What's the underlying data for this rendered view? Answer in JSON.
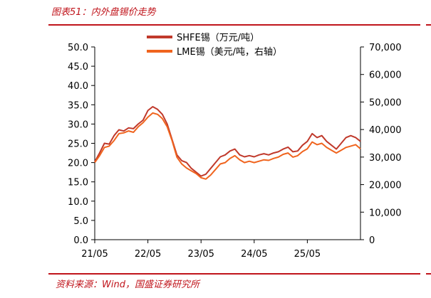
{
  "figure": {
    "title": "图表51：内外盘锡价走势",
    "source": "资料来源：Wind，国盛证券研究所"
  },
  "colors": {
    "accent": "#c0141b",
    "shfe": "#c0392b",
    "lme": "#f0641e"
  },
  "chart_data": {
    "type": "line",
    "x_tick_labels": [
      "21/05",
      "22/05",
      "23/05",
      "24/05",
      "25/05"
    ],
    "y_left": {
      "range": [
        0,
        50
      ],
      "tick_labels": [
        "0.0",
        "5.0",
        "10.0",
        "15.0",
        "20.0",
        "25.0",
        "30.0",
        "35.0",
        "40.0",
        "45.0",
        "50.0"
      ]
    },
    "y_right": {
      "range": [
        0,
        70000
      ],
      "tick_labels": [
        "0",
        "10,000",
        "20,000",
        "30,000",
        "40,000",
        "50,000",
        "60,000",
        "70,000"
      ]
    },
    "legend_position": "top-center",
    "series": [
      {
        "name": "SHFE锡（万元/吨）",
        "axis": "left",
        "x": [
          0,
          1,
          2,
          3,
          4,
          5,
          6,
          7,
          8,
          9,
          10,
          11,
          12,
          13,
          14,
          15,
          16,
          17,
          18,
          19,
          20,
          21,
          22,
          23,
          24,
          25,
          26,
          27,
          28,
          29,
          30,
          31,
          32,
          33,
          34,
          35,
          36,
          37,
          38,
          39,
          40,
          41,
          42,
          43,
          44,
          45,
          46,
          47,
          48,
          49,
          50,
          51,
          52,
          53,
          54,
          55
        ],
        "values": [
          20.2,
          22.5,
          25.0,
          24.8,
          27.0,
          28.5,
          28.2,
          29.0,
          28.8,
          30.0,
          31.0,
          33.5,
          34.5,
          33.8,
          32.5,
          30.0,
          26.0,
          22.0,
          20.5,
          20.0,
          18.5,
          17.5,
          16.5,
          17.0,
          18.5,
          20.0,
          21.5,
          22.0,
          23.0,
          23.5,
          22.0,
          21.5,
          21.8,
          21.5,
          22.0,
          22.3,
          22.0,
          22.5,
          22.8,
          23.5,
          24.0,
          22.8,
          23.0,
          24.5,
          25.5,
          27.5,
          26.5,
          27.0,
          25.5,
          24.5,
          23.5,
          25.0,
          26.5,
          27.0,
          26.5,
          25.5
        ]
      },
      {
        "name": "LME锡（美元/吨，右轴）",
        "axis": "right",
        "x": [
          0,
          1,
          2,
          3,
          4,
          5,
          6,
          7,
          8,
          9,
          10,
          11,
          12,
          13,
          14,
          15,
          16,
          17,
          18,
          19,
          20,
          21,
          22,
          23,
          24,
          25,
          26,
          27,
          28,
          29,
          30,
          31,
          32,
          33,
          34,
          35,
          36,
          37,
          38,
          39,
          40,
          41,
          42,
          43,
          44,
          45,
          46,
          47,
          48,
          49,
          50,
          51,
          52,
          53,
          54,
          55
        ],
        "values": [
          28000,
          30500,
          33500,
          34000,
          36000,
          38500,
          38800,
          39500,
          39000,
          41000,
          42500,
          44500,
          46000,
          45500,
          44000,
          41000,
          36000,
          30000,
          27500,
          26000,
          25000,
          24000,
          22500,
          22000,
          23500,
          25500,
          27500,
          28000,
          29500,
          30500,
          29000,
          28000,
          28500,
          28000,
          28500,
          29000,
          28800,
          29500,
          30000,
          31000,
          31500,
          30000,
          30500,
          32000,
          33000,
          35500,
          34500,
          35000,
          33500,
          32500,
          31500,
          32500,
          33500,
          34000,
          34500,
          33000
        ]
      }
    ]
  }
}
